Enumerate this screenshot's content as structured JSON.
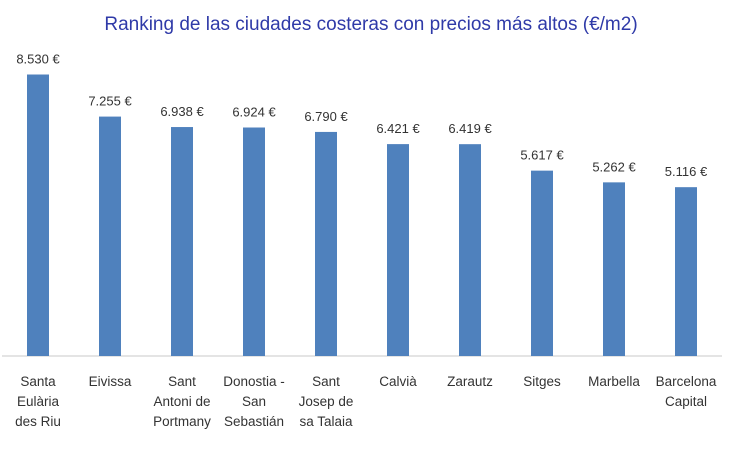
{
  "chart_data": {
    "type": "bar",
    "title": "Ranking de las ciudades costeras con precios más altos (€/m2)",
    "categories": [
      [
        "Santa",
        "Eulària",
        "des Riu"
      ],
      [
        "Eivissa"
      ],
      [
        "Sant",
        "Antoni de",
        "Portmany"
      ],
      [
        "Donostia -",
        "San",
        "Sebastián"
      ],
      [
        "Sant",
        "Josep de",
        "sa Talaia"
      ],
      [
        "Calvià"
      ],
      [
        "Zarautz"
      ],
      [
        "Sitges"
      ],
      [
        "Marbella"
      ],
      [
        "Barcelona",
        "Capital"
      ]
    ],
    "values": [
      8530,
      7255,
      6938,
      6924,
      6790,
      6421,
      6419,
      5617,
      5262,
      5116
    ],
    "value_labels": [
      "8.530 €",
      "7.255 €",
      "6.938 €",
      "6.924 €",
      "6.790 €",
      "6.421 €",
      "6.419 €",
      "5.617 €",
      "5.262 €",
      "5.116 €"
    ],
    "xlabel": "",
    "ylabel": "",
    "ylim": [
      0,
      9000
    ],
    "grid": false,
    "bar_color": "#4f81bd",
    "title_color": "#2f3aa8",
    "text_color": "#333333",
    "axis_color": "#c8c8c8"
  }
}
